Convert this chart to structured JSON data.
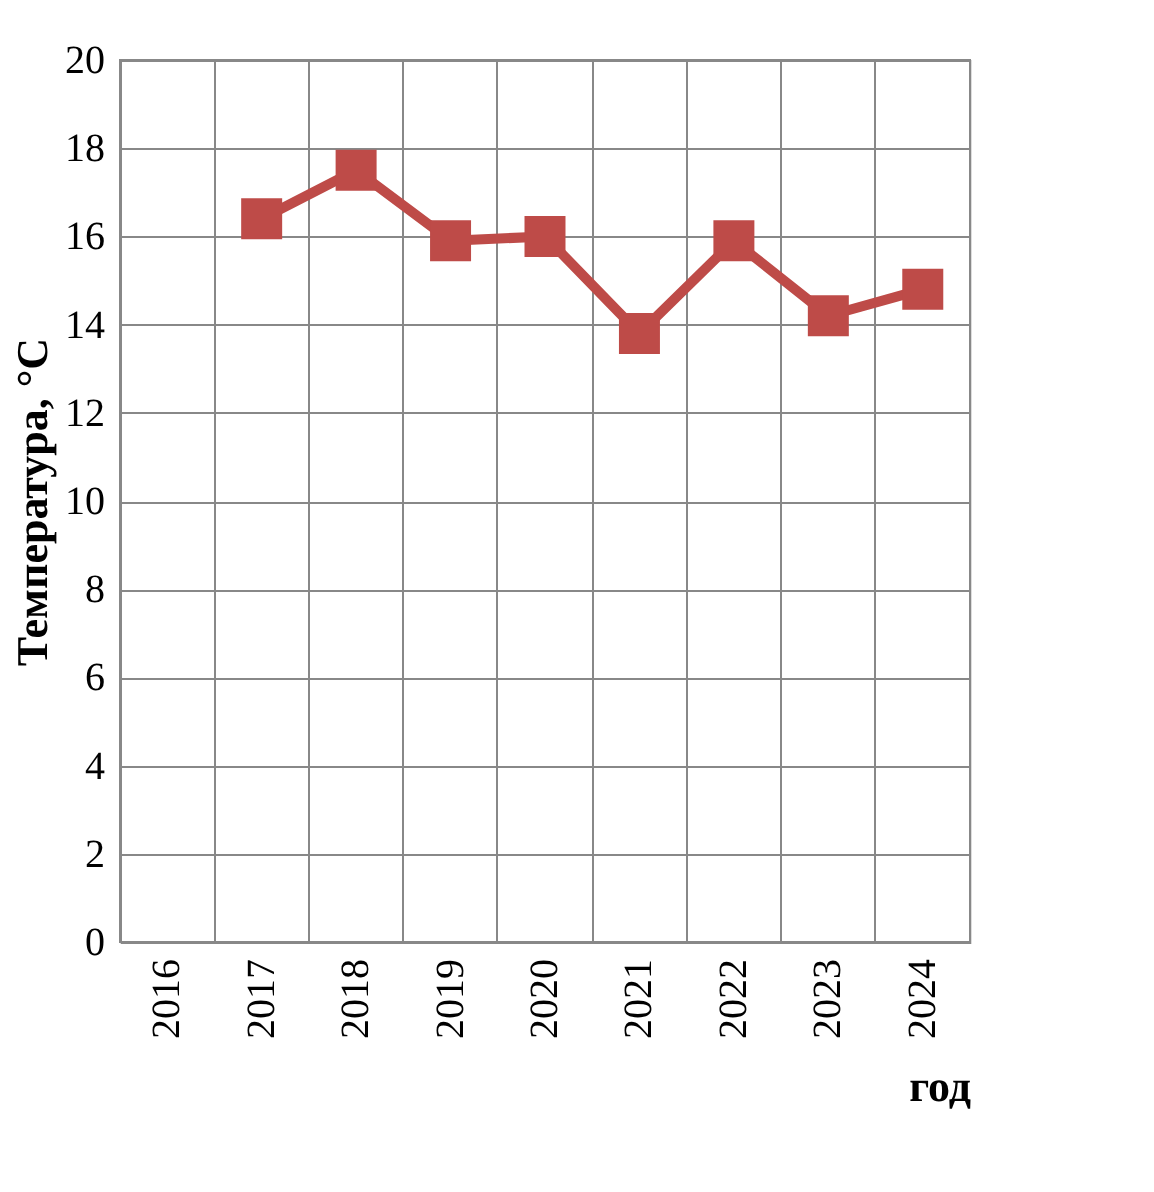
{
  "chart_data": {
    "type": "line",
    "ylabel": "Температура, °C",
    "xlabel": "год",
    "categories": [
      "2016",
      "2017",
      "2018",
      "2019",
      "2020",
      "2021",
      "2022",
      "2023",
      "2024"
    ],
    "series": [
      {
        "color": "#be4b48",
        "values": [
          null,
          16.4,
          17.5,
          15.9,
          16.0,
          13.8,
          15.9,
          14.2,
          14.8
        ]
      }
    ],
    "ylim": [
      0,
      20
    ],
    "yticks": [
      0,
      2,
      4,
      6,
      8,
      10,
      12,
      14,
      16,
      18,
      20
    ],
    "grid": true,
    "marker": "square",
    "line_style": "solid"
  }
}
